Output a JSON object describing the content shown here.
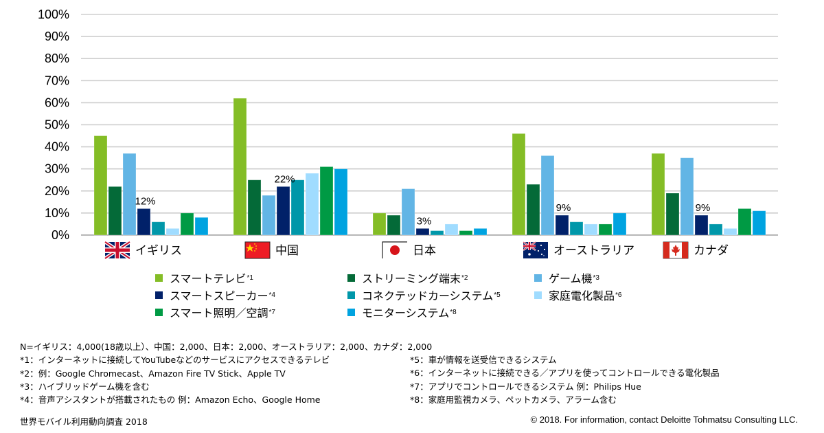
{
  "chart_data": {
    "type": "bar",
    "title": "",
    "xlabel": "",
    "ylabel": "",
    "ylim": [
      0,
      100
    ],
    "y_ticks": [
      "0%",
      "10%",
      "20%",
      "30%",
      "40%",
      "50%",
      "60%",
      "70%",
      "80%",
      "90%",
      "100%"
    ],
    "grid": true,
    "legend_position": "bottom",
    "categories": [
      "イギリス",
      "中国",
      "日本",
      "オーストラリア",
      "カナダ"
    ],
    "category_flags": [
      "uk-flag",
      "china-flag",
      "japan-flag",
      "australia-flag",
      "canada-flag"
    ],
    "series": [
      {
        "name": "スマートテレビ",
        "note": "*1",
        "color": "#84BD26",
        "values": [
          45,
          62,
          10,
          46,
          37
        ]
      },
      {
        "name": "ストリーミング端末",
        "note": "*2",
        "color": "#046A38",
        "values": [
          22,
          25,
          9,
          23,
          19
        ]
      },
      {
        "name": "ゲーム機",
        "note": "*3",
        "color": "#62B5E5",
        "values": [
          37,
          18,
          21,
          36,
          35
        ]
      },
      {
        "name": "スマートスピーカー",
        "note": "*4",
        "color": "#012169",
        "values": [
          12,
          22,
          3,
          9,
          9
        ]
      },
      {
        "name": "コネクテッドカーシステム",
        "note": "*5",
        "color": "#0097A9",
        "values": [
          6,
          25,
          2,
          6,
          5
        ]
      },
      {
        "name": "家庭電化製品",
        "note": "*6",
        "color": "#A0DCFF",
        "values": [
          3,
          28,
          5,
          5,
          3
        ]
      },
      {
        "name": "スマート照明／空調",
        "note": "*7",
        "color": "#009A44",
        "values": [
          10,
          31,
          2,
          5,
          12
        ]
      },
      {
        "name": "モニターシステム",
        "note": "*8",
        "color": "#00A3E0",
        "values": [
          8,
          30,
          3,
          10,
          11
        ]
      }
    ],
    "data_labels": [
      {
        "series_index": 3,
        "category_index": 0,
        "text": "12%"
      },
      {
        "series_index": 3,
        "category_index": 1,
        "text": "22%"
      },
      {
        "series_index": 3,
        "category_index": 2,
        "text": "3%"
      },
      {
        "series_index": 3,
        "category_index": 3,
        "text": "9%"
      },
      {
        "series_index": 3,
        "category_index": 4,
        "text": "9%"
      }
    ]
  },
  "footnotes": {
    "sample": "N=イギリス：4,000(18歳以上）、中国：2,000、日本：2,000、オーストラリア：2,000、カナダ：2,000",
    "left": [
      "*1：インターネットに接続してYouTubeなどのサービスにアクセスできるテレビ",
      "*2：例：Google Chromecast、Amazon  Fire TV Stick、Apple TV",
      "*3：ハイブリッドゲーム機を含む",
      "*4：音声アシスタントが搭載されたもの 例：Amazon Echo、Google  Home"
    ],
    "right": [
      "*5：車が情報を送受信できるシステム",
      "*6：インターネットに接続できる／アプリを使ってコントロールできる電化製品",
      "*7：アプリでコントロールできるシステム  例：Philips Hue",
      "*8：家庭用監視カメラ、ペットカメラ、アラーム含む"
    ]
  },
  "source": "世界モバイル利用動向調査 2018",
  "copyright": "© 2018. For information, contact Deloitte Tohmatsu Consulting LLC."
}
